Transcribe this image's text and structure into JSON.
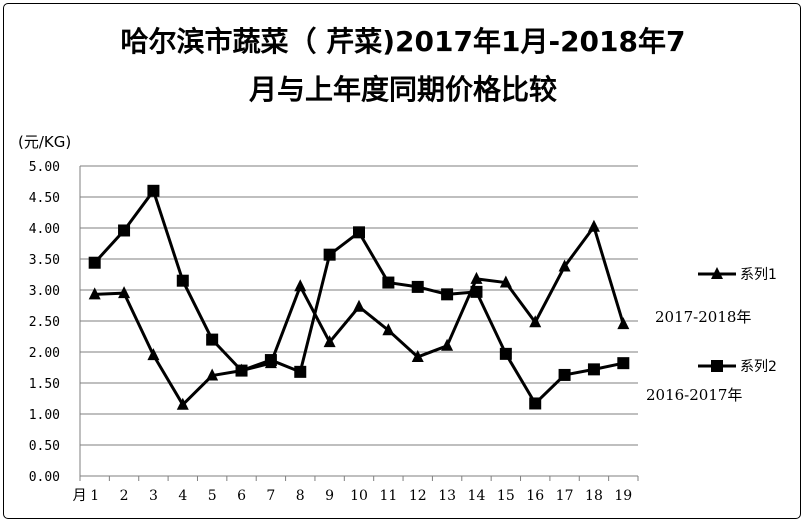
{
  "title": {
    "line1": "哈尔滨市蔬菜（ 芹菜)2017年1月-2018年7",
    "line2": "月与上年度同期价格比较"
  },
  "chart_data": {
    "type": "line",
    "unit_label": "(元/KG)",
    "categories": [
      "1",
      "2",
      "3",
      "4",
      "5",
      "6",
      "7",
      "8",
      "9",
      "10",
      "11",
      "12",
      "13",
      "14",
      "15",
      "16",
      "17",
      "18",
      "19"
    ],
    "x_prefix": "月",
    "ylim": [
      0,
      5
    ],
    "yticks": [
      "0.00",
      "0.50",
      "1.00",
      "1.50",
      "2.00",
      "2.50",
      "3.00",
      "3.50",
      "4.00",
      "4.50",
      "5.00"
    ],
    "grid": true,
    "series": [
      {
        "name": "系列1",
        "marker": "triangle",
        "note": "2017-2018年",
        "values": [
          2.93,
          2.95,
          1.95,
          1.15,
          1.62,
          1.7,
          1.82,
          3.06,
          2.16,
          2.73,
          2.35,
          1.92,
          2.1,
          3.18,
          3.12,
          2.48,
          3.38,
          4.02,
          2.45
        ]
      },
      {
        "name": "系列2",
        "marker": "square",
        "note": "2016-2017年",
        "values": [
          3.44,
          3.96,
          4.6,
          3.15,
          2.2,
          1.7,
          1.87,
          1.68,
          3.57,
          3.93,
          3.12,
          3.05,
          2.93,
          2.97,
          1.97,
          1.17,
          1.63,
          1.72,
          1.82
        ]
      }
    ],
    "line_color": "#000000",
    "grid_color": "#7f7f7f"
  }
}
